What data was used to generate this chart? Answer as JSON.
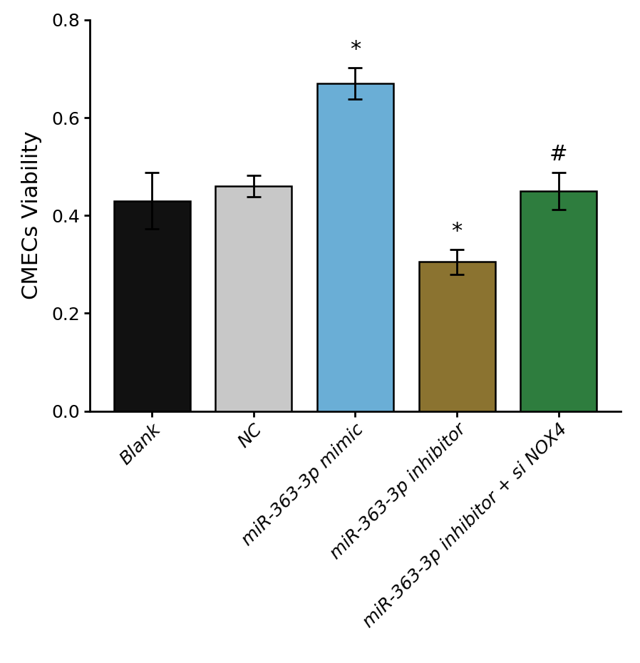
{
  "categories": [
    "Blank",
    "NC",
    "miR-363-3p mimic",
    "miR-363-3p inhibitor",
    "miR-363-3p inhibitor + si NOX4"
  ],
  "values": [
    0.43,
    0.46,
    0.67,
    0.305,
    0.45
  ],
  "errors": [
    0.058,
    0.022,
    0.032,
    0.025,
    0.038
  ],
  "bar_colors": [
    "#111111",
    "#c8c8c8",
    "#6aaed6",
    "#8b7330",
    "#2e7d3e"
  ],
  "edge_colors": [
    "#000000",
    "#000000",
    "#000000",
    "#000000",
    "#000000"
  ],
  "ylabel": "CMECs Viability",
  "ylim": [
    0,
    0.8
  ],
  "yticks": [
    0.0,
    0.2,
    0.4,
    0.6,
    0.8
  ],
  "annotations": [
    {
      "bar_idx": 2,
      "text": "*",
      "fontsize": 22
    },
    {
      "bar_idx": 3,
      "text": "*",
      "fontsize": 22
    },
    {
      "bar_idx": 4,
      "text": "#",
      "fontsize": 22
    }
  ],
  "bar_width": 0.75,
  "figsize": [
    8.98,
    9.3
  ],
  "dpi": 100,
  "tick_label_fontsize": 18,
  "ylabel_fontsize": 22,
  "ytick_fontsize": 18
}
